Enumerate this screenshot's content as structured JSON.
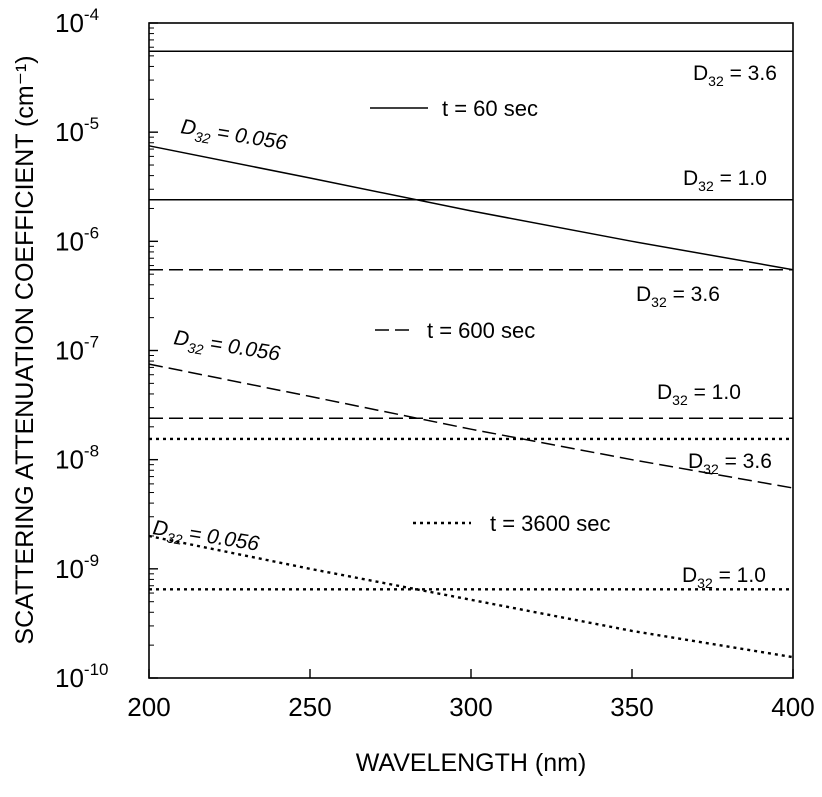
{
  "chart_data": {
    "type": "line",
    "xlabel": "WAVELENGTH (nm)",
    "ylabel": "SCATTERING ATTENUATION COEFFICIENT (cm⁻¹)",
    "xlim": [
      200,
      400
    ],
    "ylim": [
      1e-10,
      0.0001
    ],
    "yscale": "log",
    "x_ticks": [
      "200",
      "250",
      "300",
      "350",
      "400"
    ],
    "y_ticks": [
      {
        "base": "10",
        "exp": "-10"
      },
      {
        "base": "10",
        "exp": "-9"
      },
      {
        "base": "10",
        "exp": "-8"
      },
      {
        "base": "10",
        "exp": "-7"
      },
      {
        "base": "10",
        "exp": "-6"
      },
      {
        "base": "10",
        "exp": "-5"
      },
      {
        "base": "10",
        "exp": "-4"
      }
    ],
    "grid": false,
    "legend": [
      {
        "label": "t = 60 sec",
        "style": "solid"
      },
      {
        "label": "t = 600 sec",
        "style": "dashed"
      },
      {
        "label": "t = 3600 sec",
        "style": "dotted"
      }
    ],
    "series": [
      {
        "group": "t = 60 sec",
        "style": "solid",
        "label": "D32 = 3.6",
        "x": [
          200,
          400
        ],
        "y": [
          5.5e-05,
          5.5e-05
        ]
      },
      {
        "group": "t = 60 sec",
        "style": "solid",
        "label": "D32 = 1.0",
        "x": [
          200,
          400
        ],
        "y": [
          2.4e-06,
          2.4e-06
        ]
      },
      {
        "group": "t = 60 sec",
        "style": "solid",
        "label": "D32 = 0.056",
        "x": [
          200,
          250,
          300,
          350,
          400
        ],
        "y": [
          7.5e-06,
          3.8e-06,
          1.9e-06,
          1e-06,
          5.5e-07
        ]
      },
      {
        "group": "t = 600 sec",
        "style": "dashed",
        "label": "D32 = 3.6",
        "x": [
          200,
          400
        ],
        "y": [
          5.5e-07,
          5.5e-07
        ]
      },
      {
        "group": "t = 600 sec",
        "style": "dashed",
        "label": "D32 = 1.0",
        "x": [
          200,
          400
        ],
        "y": [
          2.4e-08,
          2.4e-08
        ]
      },
      {
        "group": "t = 600 sec",
        "style": "dashed",
        "label": "D32 = 0.056",
        "x": [
          200,
          250,
          300,
          350,
          400
        ],
        "y": [
          7.5e-08,
          3.8e-08,
          1.9e-08,
          1e-08,
          5.5e-09
        ]
      },
      {
        "group": "t = 3600 sec",
        "style": "dotted",
        "label": "D32 = 3.6",
        "x": [
          200,
          400
        ],
        "y": [
          1.55e-08,
          1.55e-08
        ]
      },
      {
        "group": "t = 3600 sec",
        "style": "dotted",
        "label": "D32 = 1.0",
        "x": [
          200,
          400
        ],
        "y": [
          6.5e-10,
          6.5e-10
        ]
      },
      {
        "group": "t = 3600 sec",
        "style": "dotted",
        "label": "D32 = 0.056",
        "x": [
          200,
          250,
          300,
          350,
          400
        ],
        "y": [
          2e-09,
          1e-09,
          5.2e-10,
          2.7e-10,
          1.55e-10
        ]
      }
    ],
    "annotations": [
      {
        "id": "ann-60-36",
        "sym": "D",
        "sub": "32",
        "rest": " = 3.6",
        "italic": false
      },
      {
        "id": "ann-60-10",
        "sym": "D",
        "sub": "32",
        "rest": " = 1.0",
        "italic": false
      },
      {
        "id": "ann-60-0056",
        "sym": "D",
        "sub": "32",
        "rest": " = 0.056",
        "italic": true
      },
      {
        "id": "ann-600-36",
        "sym": "D",
        "sub": "32",
        "rest": " = 3.6",
        "italic": false
      },
      {
        "id": "ann-600-10",
        "sym": "D",
        "sub": "32",
        "rest": " = 1.0",
        "italic": false
      },
      {
        "id": "ann-600-0056",
        "sym": "D",
        "sub": "32",
        "rest": " = 0.056",
        "italic": true
      },
      {
        "id": "ann-3600-36",
        "sym": "D",
        "sub": "32",
        "rest": " = 3.6",
        "italic": false
      },
      {
        "id": "ann-3600-10",
        "sym": "D",
        "sub": "32",
        "rest": " = 1.0",
        "italic": false
      },
      {
        "id": "ann-3600-0056",
        "sym": "D",
        "sub": "32",
        "rest": " = 0.056",
        "italic": true
      }
    ]
  }
}
